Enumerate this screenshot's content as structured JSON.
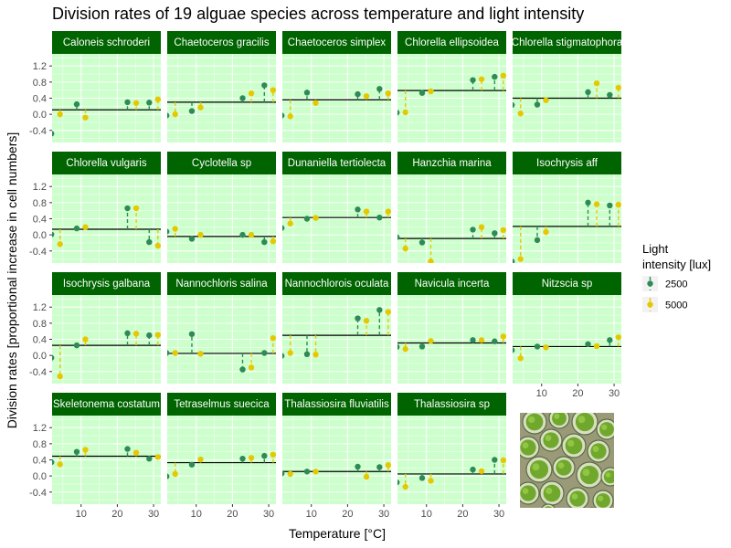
{
  "chart_data": {
    "type": "scatter",
    "title": "Division rates of 19 alguae species across temperature and light intensity",
    "xlabel": "Temperature [°C]",
    "ylabel": "Division rates [proportional increase in cell numbers]",
    "xlim": [
      2,
      32
    ],
    "ylim": [
      -0.7,
      1.5
    ],
    "x_ticks": [
      10,
      20,
      30
    ],
    "x_tick_labels": [
      "10",
      "20",
      "30"
    ],
    "y_ticks": [
      -0.4,
      0.0,
      0.4,
      0.8,
      1.2
    ],
    "y_tick_labels": [
      "-0.4",
      "0.0",
      "0.4",
      "0.8",
      "1.2"
    ],
    "legend": {
      "title_lines": [
        "Light",
        "intensity [lux]"
      ],
      "entries": [
        {
          "label": "2500",
          "color": "#2e8b57"
        },
        {
          "label": "5000",
          "color": "#e6c800"
        }
      ],
      "position": "right"
    },
    "colors": {
      "panel_bg": "#ccffcc",
      "strip_bg": "#006400",
      "mean_line": "#000000",
      "grid": "#ffffff"
    },
    "temperatures": [
      3,
      10,
      24,
      30
    ],
    "panels": [
      {
        "name": "Caloneis schroderi",
        "mean": 0.11,
        "s2500": [
          -0.48,
          0.25,
          0.3,
          0.29
        ],
        "s5000": [
          0.0,
          -0.08,
          0.28,
          0.37
        ]
      },
      {
        "name": "Chaetoceros gracilis",
        "mean": 0.3,
        "s2500": [
          -0.03,
          0.08,
          0.4,
          0.72
        ],
        "s5000": [
          0.0,
          0.17,
          0.52,
          0.6
        ]
      },
      {
        "name": "Chaetoceros simplex",
        "mean": 0.36,
        "s2500": [
          -0.03,
          0.54,
          0.5,
          0.63
        ],
        "s5000": [
          -0.05,
          0.28,
          0.45,
          0.52
        ]
      },
      {
        "name": "Chlorella ellipsoidea",
        "mean": 0.59,
        "s2500": [
          0.04,
          0.53,
          0.85,
          0.93
        ],
        "s5000": [
          0.05,
          0.57,
          0.87,
          0.96
        ]
      },
      {
        "name": "Chlorella stigmatophora",
        "mean": 0.4,
        "s2500": [
          0.23,
          0.24,
          0.55,
          0.48
        ],
        "s5000": [
          0.02,
          0.35,
          0.77,
          0.66
        ]
      },
      {
        "name": "Chlorella vulgaris",
        "mean": 0.14,
        "s2500": [
          0.01,
          0.16,
          0.66,
          -0.18
        ],
        "s5000": [
          -0.23,
          0.19,
          0.66,
          -0.27
        ]
      },
      {
        "name": "Cyclotella sp",
        "mean": -0.04,
        "s2500": [
          0.08,
          -0.1,
          0.0,
          -0.18
        ],
        "s5000": [
          0.15,
          0.0,
          0.0,
          -0.16
        ]
      },
      {
        "name": "Dunaniella tertiolecta",
        "mean": 0.43,
        "s2500": [
          0.17,
          0.4,
          0.63,
          0.43
        ],
        "s5000": [
          0.28,
          0.42,
          0.58,
          0.58
        ]
      },
      {
        "name": "Hanzchia marina",
        "mean": -0.09,
        "s2500": [
          -0.06,
          -0.19,
          0.13,
          0.04
        ],
        "s5000": [
          -0.34,
          -0.66,
          0.19,
          0.12
        ]
      },
      {
        "name": "Isochrysis aff",
        "mean": 0.21,
        "s2500": [
          -0.66,
          -0.13,
          0.8,
          0.73
        ],
        "s5000": [
          -0.6,
          0.07,
          0.76,
          0.75
        ]
      },
      {
        "name": "Isochrysis galbana",
        "mean": 0.25,
        "s2500": [
          -0.06,
          0.25,
          0.55,
          0.5
        ],
        "s5000": [
          -0.52,
          0.4,
          0.54,
          0.51
        ]
      },
      {
        "name": "Nannochloris salina",
        "mean": 0.05,
        "s2500": [
          0.06,
          0.53,
          -0.35,
          0.06
        ],
        "s5000": [
          0.06,
          0.04,
          -0.3,
          0.43
        ]
      },
      {
        "name": "Nannochlorois oculata",
        "mean": 0.5,
        "s2500": [
          -0.01,
          0.03,
          0.92,
          1.13
        ],
        "s5000": [
          0.06,
          0.02,
          0.86,
          1.08
        ]
      },
      {
        "name": "Navicula incerta",
        "mean": 0.31,
        "s2500": [
          0.21,
          0.22,
          0.38,
          0.35
        ],
        "s5000": [
          0.16,
          0.36,
          0.38,
          0.47
        ]
      },
      {
        "name": "Nitzscia sp",
        "mean": 0.22,
        "s2500": [
          0.13,
          0.22,
          0.28,
          0.38
        ],
        "s5000": [
          -0.07,
          0.2,
          0.23,
          0.45
        ]
      },
      {
        "name": "Skeletonema costatum",
        "mean": 0.49,
        "s2500": [
          0.34,
          0.6,
          0.67,
          0.43
        ],
        "s5000": [
          0.29,
          0.65,
          0.58,
          0.47
        ]
      },
      {
        "name": "Tetraselmus suecica",
        "mean": 0.33,
        "s2500": [
          -0.01,
          0.28,
          0.43,
          0.5
        ],
        "s5000": [
          0.05,
          0.41,
          0.45,
          0.53
        ]
      },
      {
        "name": "Thalassiosira fluviatilis",
        "mean": 0.11,
        "s2500": [
          0.06,
          0.11,
          0.23,
          0.22
        ],
        "s5000": [
          0.05,
          0.11,
          -0.02,
          0.27
        ]
      },
      {
        "name": "Thalassiosira sp",
        "mean": 0.05,
        "s2500": [
          -0.16,
          -0.05,
          0.16,
          0.4
        ],
        "s5000": [
          -0.27,
          -0.12,
          0.12,
          0.39
        ]
      }
    ]
  }
}
